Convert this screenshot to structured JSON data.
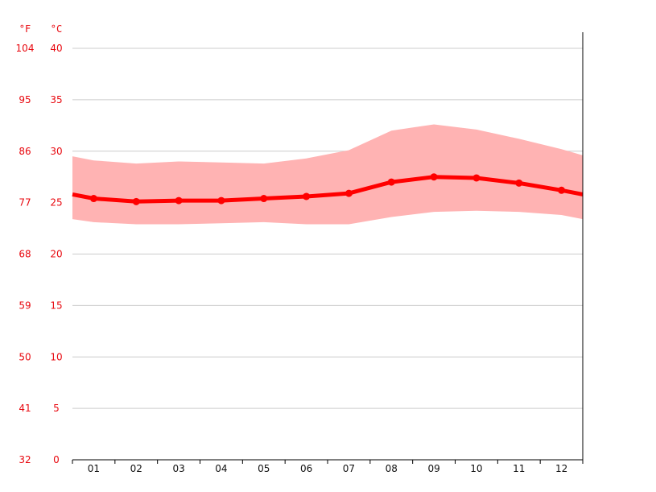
{
  "chart_data": {
    "type": "line",
    "x_categories": [
      "01",
      "02",
      "03",
      "04",
      "05",
      "06",
      "07",
      "08",
      "09",
      "10",
      "11",
      "12"
    ],
    "y_left_unit": "°F",
    "y_right_unit": "°C",
    "ylim_c": [
      0,
      40
    ],
    "y_ticks_c": [
      0,
      5,
      10,
      15,
      20,
      25,
      30,
      35,
      40
    ],
    "y_ticks_f": [
      32,
      41,
      50,
      59,
      68,
      77,
      86,
      95,
      104
    ],
    "grid": true,
    "series": [
      {
        "role": "mean",
        "color": "#ff0000",
        "values": [
          25.4,
          25.1,
          25.2,
          25.2,
          25.4,
          25.6,
          25.9,
          27.0,
          27.5,
          27.4,
          26.9,
          26.2
        ]
      },
      {
        "role": "max",
        "color": "#ffb3b3",
        "values": [
          29.1,
          28.8,
          29.0,
          28.9,
          28.8,
          29.3,
          30.1,
          32.0,
          32.6,
          32.1,
          31.2,
          30.2
        ]
      },
      {
        "role": "min",
        "color": "#ffb3b3",
        "values": [
          23.1,
          22.9,
          22.9,
          23.0,
          23.1,
          22.9,
          22.9,
          23.6,
          24.1,
          24.2,
          24.1,
          23.8
        ]
      }
    ],
    "edge_values": {
      "mean": [
        25.8,
        25.8
      ],
      "max": [
        29.5,
        29.6
      ],
      "min": [
        23.4,
        23.4
      ]
    }
  }
}
